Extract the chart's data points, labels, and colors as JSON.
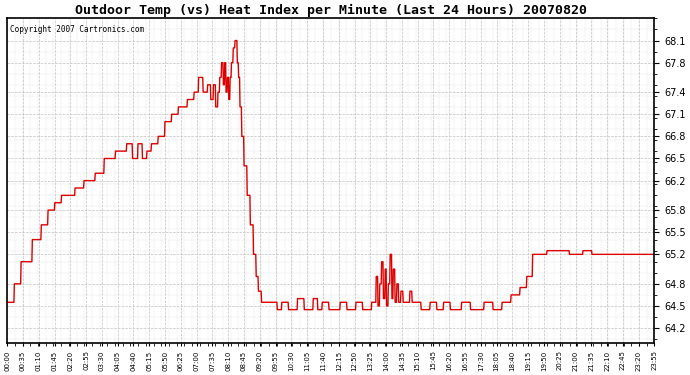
{
  "title": "Outdoor Temp (vs) Heat Index per Minute (Last 24 Hours) 20070820",
  "copyright": "Copyright 2007 Cartronics.com",
  "yticks": [
    64.2,
    64.5,
    64.8,
    65.2,
    65.5,
    65.8,
    66.2,
    66.5,
    66.8,
    67.1,
    67.4,
    67.8,
    68.1
  ],
  "ymin": 64.0,
  "ymax": 68.4,
  "line_color": "#dd0000",
  "bg_color": "#ffffff",
  "grid_color": "#bbbbbb",
  "xtick_labels": [
    "00:00",
    "00:35",
    "01:10",
    "01:45",
    "02:20",
    "02:55",
    "03:30",
    "04:05",
    "04:40",
    "05:15",
    "05:50",
    "06:25",
    "07:00",
    "07:35",
    "08:10",
    "08:45",
    "09:20",
    "09:55",
    "10:30",
    "11:05",
    "11:40",
    "12:15",
    "12:50",
    "13:25",
    "14:00",
    "14:35",
    "15:10",
    "15:45",
    "16:20",
    "16:55",
    "17:30",
    "18:05",
    "18:40",
    "19:15",
    "19:50",
    "20:25",
    "21:00",
    "21:35",
    "22:10",
    "22:45",
    "23:20",
    "23:55"
  ],
  "control_points": [
    [
      0,
      64.55
    ],
    [
      15,
      64.55
    ],
    [
      16,
      64.8
    ],
    [
      30,
      64.8
    ],
    [
      31,
      65.1
    ],
    [
      55,
      65.1
    ],
    [
      56,
      65.4
    ],
    [
      75,
      65.4
    ],
    [
      76,
      65.6
    ],
    [
      90,
      65.6
    ],
    [
      91,
      65.8
    ],
    [
      105,
      65.8
    ],
    [
      106,
      65.9
    ],
    [
      120,
      65.9
    ],
    [
      121,
      66.0
    ],
    [
      150,
      66.0
    ],
    [
      151,
      66.1
    ],
    [
      170,
      66.1
    ],
    [
      171,
      66.2
    ],
    [
      195,
      66.2
    ],
    [
      196,
      66.3
    ],
    [
      215,
      66.3
    ],
    [
      216,
      66.5
    ],
    [
      240,
      66.5
    ],
    [
      241,
      66.6
    ],
    [
      265,
      66.6
    ],
    [
      266,
      66.7
    ],
    [
      278,
      66.7
    ],
    [
      279,
      66.5
    ],
    [
      290,
      66.5
    ],
    [
      291,
      66.7
    ],
    [
      300,
      66.7
    ],
    [
      301,
      66.5
    ],
    [
      310,
      66.5
    ],
    [
      311,
      66.6
    ],
    [
      320,
      66.6
    ],
    [
      321,
      66.7
    ],
    [
      335,
      66.7
    ],
    [
      336,
      66.8
    ],
    [
      350,
      66.8
    ],
    [
      351,
      67.0
    ],
    [
      365,
      67.0
    ],
    [
      366,
      67.1
    ],
    [
      380,
      67.1
    ],
    [
      381,
      67.2
    ],
    [
      400,
      67.2
    ],
    [
      401,
      67.3
    ],
    [
      415,
      67.3
    ],
    [
      416,
      67.4
    ],
    [
      425,
      67.4
    ],
    [
      426,
      67.6
    ],
    [
      435,
      67.6
    ],
    [
      436,
      67.4
    ],
    [
      445,
      67.4
    ],
    [
      446,
      67.5
    ],
    [
      452,
      67.5
    ],
    [
      453,
      67.3
    ],
    [
      458,
      67.3
    ],
    [
      459,
      67.5
    ],
    [
      463,
      67.5
    ],
    [
      464,
      67.2
    ],
    [
      468,
      67.2
    ],
    [
      469,
      67.4
    ],
    [
      472,
      67.4
    ],
    [
      473,
      67.6
    ],
    [
      476,
      67.6
    ],
    [
      477,
      67.8
    ],
    [
      480,
      67.8
    ],
    [
      481,
      67.5
    ],
    [
      483,
      67.5
    ],
    [
      484,
      67.8
    ],
    [
      486,
      67.8
    ],
    [
      487,
      67.4
    ],
    [
      489,
      67.4
    ],
    [
      490,
      67.6
    ],
    [
      492,
      67.6
    ],
    [
      493,
      67.3
    ],
    [
      495,
      67.3
    ],
    [
      496,
      67.6
    ],
    [
      498,
      67.6
    ],
    [
      499,
      67.8
    ],
    [
      502,
      67.8
    ],
    [
      503,
      68.0
    ],
    [
      506,
      68.0
    ],
    [
      507,
      68.1
    ],
    [
      511,
      68.1
    ],
    [
      512,
      67.8
    ],
    [
      514,
      67.8
    ],
    [
      515,
      67.6
    ],
    [
      517,
      67.6
    ],
    [
      518,
      67.2
    ],
    [
      521,
      67.2
    ],
    [
      522,
      66.8
    ],
    [
      526,
      66.8
    ],
    [
      527,
      66.4
    ],
    [
      533,
      66.4
    ],
    [
      534,
      66.0
    ],
    [
      540,
      66.0
    ],
    [
      541,
      65.6
    ],
    [
      547,
      65.6
    ],
    [
      548,
      65.2
    ],
    [
      553,
      65.2
    ],
    [
      554,
      64.9
    ],
    [
      558,
      64.9
    ],
    [
      559,
      64.7
    ],
    [
      565,
      64.7
    ],
    [
      566,
      64.55
    ],
    [
      600,
      64.55
    ],
    [
      601,
      64.45
    ],
    [
      610,
      64.45
    ],
    [
      611,
      64.55
    ],
    [
      625,
      64.55
    ],
    [
      626,
      64.45
    ],
    [
      645,
      64.45
    ],
    [
      646,
      64.6
    ],
    [
      660,
      64.6
    ],
    [
      661,
      64.45
    ],
    [
      680,
      64.45
    ],
    [
      681,
      64.6
    ],
    [
      690,
      64.6
    ],
    [
      691,
      64.45
    ],
    [
      700,
      64.45
    ],
    [
      701,
      64.55
    ],
    [
      715,
      64.55
    ],
    [
      716,
      64.45
    ],
    [
      740,
      64.45
    ],
    [
      741,
      64.55
    ],
    [
      755,
      64.55
    ],
    [
      756,
      64.45
    ],
    [
      775,
      64.45
    ],
    [
      776,
      64.55
    ],
    [
      790,
      64.55
    ],
    [
      791,
      64.45
    ],
    [
      810,
      64.45
    ],
    [
      811,
      64.55
    ],
    [
      820,
      64.55
    ],
    [
      821,
      64.9
    ],
    [
      824,
      64.9
    ],
    [
      825,
      64.5
    ],
    [
      828,
      64.5
    ],
    [
      829,
      64.8
    ],
    [
      832,
      64.8
    ],
    [
      833,
      65.1
    ],
    [
      836,
      65.1
    ],
    [
      837,
      64.6
    ],
    [
      840,
      64.6
    ],
    [
      841,
      65.0
    ],
    [
      843,
      65.0
    ],
    [
      844,
      64.5
    ],
    [
      847,
      64.5
    ],
    [
      848,
      64.8
    ],
    [
      851,
      64.8
    ],
    [
      852,
      65.2
    ],
    [
      855,
      65.2
    ],
    [
      856,
      64.6
    ],
    [
      858,
      64.6
    ],
    [
      859,
      65.0
    ],
    [
      862,
      65.0
    ],
    [
      863,
      64.55
    ],
    [
      866,
      64.55
    ],
    [
      867,
      64.8
    ],
    [
      870,
      64.8
    ],
    [
      871,
      64.55
    ],
    [
      875,
      64.55
    ],
    [
      876,
      64.7
    ],
    [
      880,
      64.7
    ],
    [
      881,
      64.55
    ],
    [
      895,
      64.55
    ],
    [
      896,
      64.7
    ],
    [
      900,
      64.7
    ],
    [
      901,
      64.55
    ],
    [
      920,
      64.55
    ],
    [
      921,
      64.45
    ],
    [
      940,
      64.45
    ],
    [
      941,
      64.55
    ],
    [
      955,
      64.55
    ],
    [
      956,
      64.45
    ],
    [
      970,
      64.45
    ],
    [
      971,
      64.55
    ],
    [
      985,
      64.55
    ],
    [
      986,
      64.45
    ],
    [
      1010,
      64.45
    ],
    [
      1011,
      64.55
    ],
    [
      1030,
      64.55
    ],
    [
      1031,
      64.45
    ],
    [
      1060,
      64.45
    ],
    [
      1061,
      64.55
    ],
    [
      1080,
      64.55
    ],
    [
      1081,
      64.45
    ],
    [
      1100,
      64.45
    ],
    [
      1101,
      64.55
    ],
    [
      1120,
      64.55
    ],
    [
      1121,
      64.65
    ],
    [
      1140,
      64.65
    ],
    [
      1141,
      64.75
    ],
    [
      1155,
      64.75
    ],
    [
      1156,
      64.9
    ],
    [
      1168,
      64.9
    ],
    [
      1169,
      65.2
    ],
    [
      1200,
      65.2
    ],
    [
      1201,
      65.25
    ],
    [
      1250,
      65.25
    ],
    [
      1251,
      65.2
    ],
    [
      1280,
      65.2
    ],
    [
      1281,
      65.25
    ],
    [
      1300,
      65.25
    ],
    [
      1301,
      65.2
    ],
    [
      1440,
      65.2
    ]
  ]
}
